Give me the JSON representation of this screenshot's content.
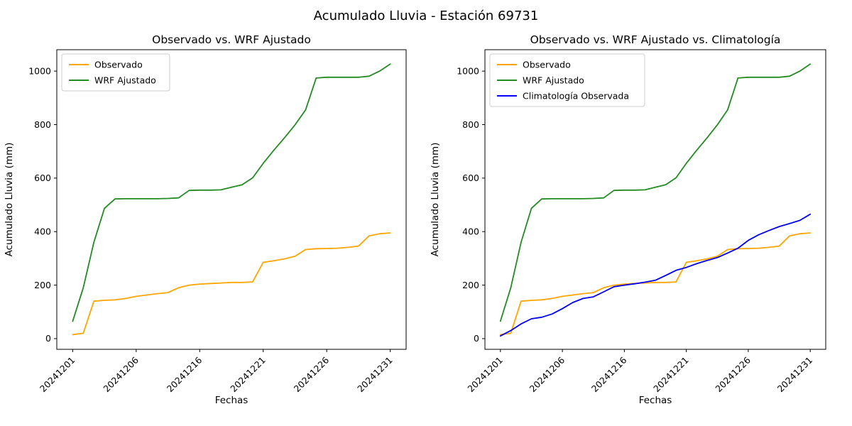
{
  "page": {
    "title": "Acumulado Lluvia - Estación 69731"
  },
  "chart_data": [
    {
      "type": "line",
      "title": "Observado vs. WRF Ajustado",
      "xlabel": "Fechas",
      "ylabel": "Acumulado Lluvia (mm)",
      "x_ticklabels": [
        "20241201",
        "20241206",
        "20241216",
        "20241221",
        "20241226",
        "20241231"
      ],
      "x_tick_indices": [
        0,
        6,
        12,
        18,
        24,
        30
      ],
      "y_ticks": [
        0,
        200,
        400,
        600,
        800,
        1000
      ],
      "ylim": [
        -40,
        1080
      ],
      "grid": false,
      "legend_position": "upper-left",
      "series": [
        {
          "name": "Observado",
          "color": "#FFA500",
          "values": [
            15,
            20,
            140,
            143,
            145,
            150,
            158,
            163,
            168,
            172,
            190,
            200,
            204,
            206,
            208,
            210,
            210,
            212,
            285,
            291,
            298,
            308,
            333,
            336,
            337,
            338,
            341,
            346,
            384,
            392,
            395
          ]
        },
        {
          "name": "WRF Ajustado",
          "color": "#228B22",
          "values": [
            65,
            190,
            360,
            487,
            522,
            523,
            523,
            523,
            523,
            524,
            526,
            554,
            555,
            555,
            556,
            566,
            575,
            601,
            655,
            704,
            750,
            799,
            855,
            974,
            977,
            977,
            977,
            977,
            981,
            1000,
            1026
          ]
        }
      ]
    },
    {
      "type": "line",
      "title": "Observado vs. WRF Ajustado vs. Climatología",
      "xlabel": "Fechas",
      "ylabel": "Acumulado Lluvia (mm)",
      "x_ticklabels": [
        "20241201",
        "20241206",
        "20241216",
        "20241221",
        "20241226",
        "20241231"
      ],
      "x_tick_indices": [
        0,
        6,
        12,
        18,
        24,
        30
      ],
      "y_ticks": [
        0,
        200,
        400,
        600,
        800,
        1000
      ],
      "ylim": [
        -40,
        1080
      ],
      "grid": false,
      "legend_position": "upper-left",
      "series": [
        {
          "name": "Observado",
          "color": "#FFA500",
          "values": [
            15,
            20,
            140,
            143,
            145,
            150,
            158,
            163,
            168,
            172,
            190,
            200,
            204,
            206,
            208,
            210,
            210,
            212,
            285,
            291,
            298,
            308,
            333,
            336,
            337,
            338,
            341,
            346,
            384,
            392,
            395
          ]
        },
        {
          "name": "WRF Ajustado",
          "color": "#228B22",
          "values": [
            65,
            190,
            360,
            487,
            522,
            523,
            523,
            523,
            523,
            524,
            526,
            554,
            555,
            555,
            556,
            566,
            575,
            601,
            655,
            704,
            750,
            799,
            855,
            974,
            977,
            977,
            977,
            977,
            981,
            1000,
            1026
          ]
        },
        {
          "name": "Climatología Observada",
          "color": "#0000FF",
          "values": [
            10,
            30,
            55,
            74,
            80,
            92,
            112,
            135,
            150,
            156,
            175,
            194,
            200,
            205,
            211,
            218,
            236,
            255,
            266,
            280,
            292,
            303,
            320,
            338,
            367,
            388,
            404,
            419,
            430,
            442,
            465
          ]
        }
      ]
    }
  ]
}
